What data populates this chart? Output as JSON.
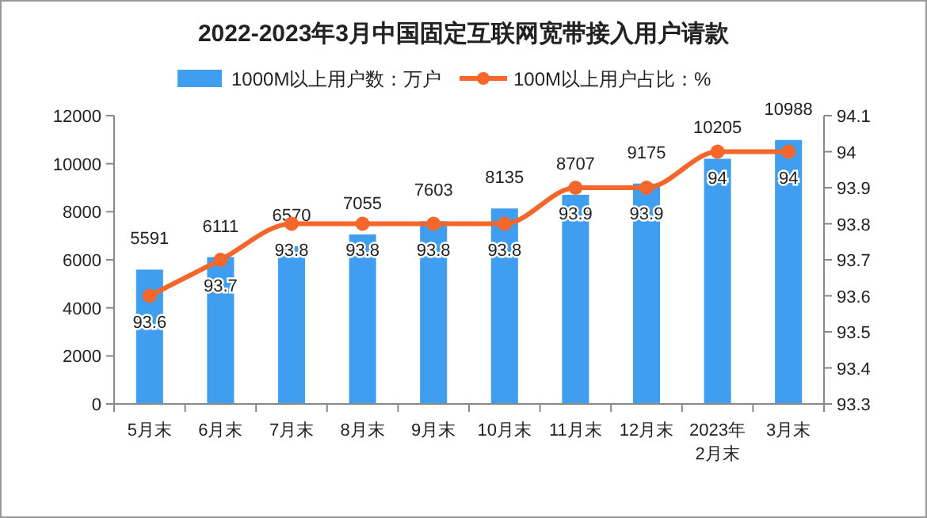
{
  "chart_data": {
    "type": "bar",
    "title": "2022-2023年3月中国固定互联网宽带接入用户请款",
    "categories": [
      "5月末",
      "6月末",
      "7月末",
      "8月末",
      "9月末",
      "10月末",
      "11月末",
      "12月末",
      "2023年\n2月末",
      "3月末"
    ],
    "series": [
      {
        "name": "1000M以上用户数：万户",
        "color": "#3f9ef0",
        "values": [
          5591,
          6111,
          6570,
          7055,
          7603,
          8135,
          8707,
          9175,
          10205,
          10988
        ]
      },
      {
        "name": "100M以上用户占比：%",
        "type": "line",
        "axis": "y2",
        "color": "#f4662a",
        "values": [
          93.6,
          93.7,
          93.8,
          93.8,
          93.8,
          93.8,
          93.9,
          93.9,
          94,
          94
        ]
      }
    ],
    "ylim": [
      0,
      12000
    ],
    "yticks": [
      0,
      2000,
      4000,
      6000,
      8000,
      10000,
      12000
    ],
    "y2lim": [
      93.3,
      94.1
    ],
    "y2ticks": [
      93.3,
      93.4,
      93.5,
      93.6,
      93.7,
      93.8,
      93.9,
      94,
      94.1
    ],
    "data_labels": true,
    "legend": "top",
    "marker": "circle",
    "grid": false
  }
}
